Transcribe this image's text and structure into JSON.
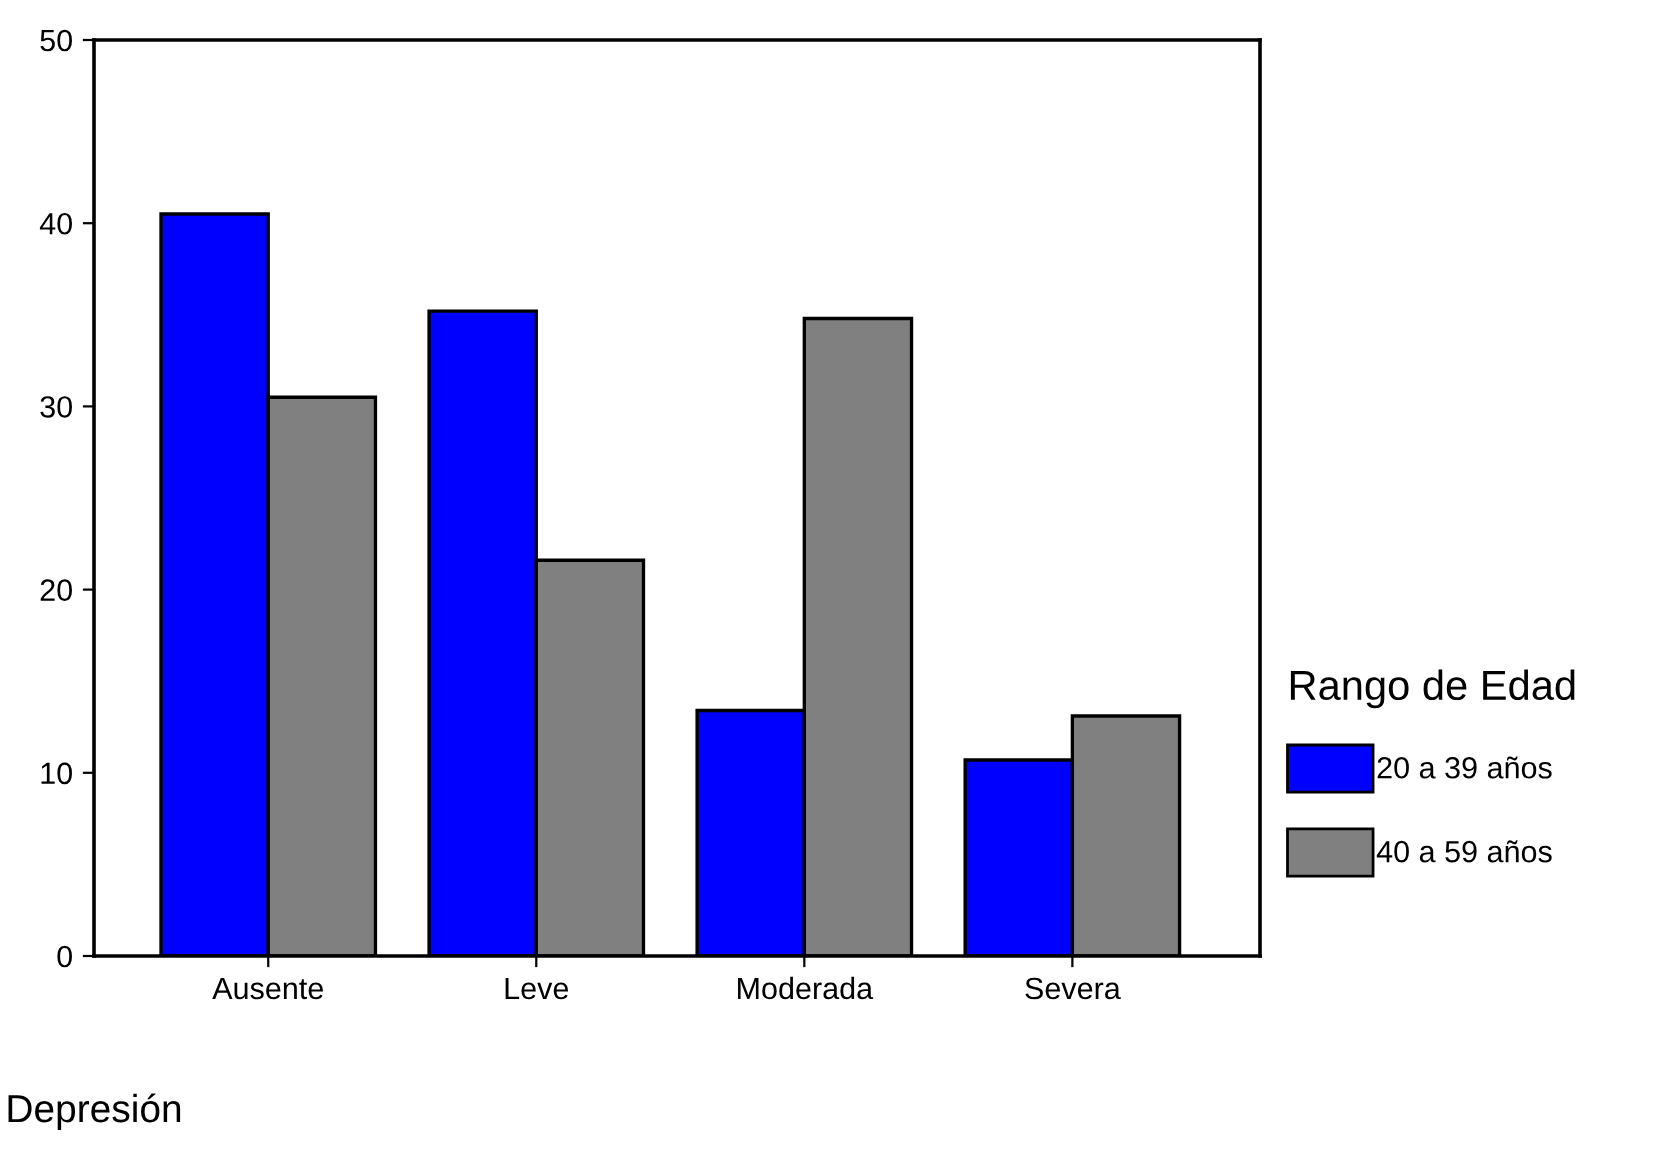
{
  "chart_data": {
    "type": "bar",
    "xlabel": "Depresión",
    "legend_title": "Rango de Edad",
    "categories": [
      "Ausente",
      "Leve",
      "Moderada",
      "Severa"
    ],
    "series": [
      {
        "name": "20 a 39 años",
        "color": "#0000ff",
        "values": [
          40.5,
          35.2,
          13.4,
          10.7
        ]
      },
      {
        "name": "40 a 59 años",
        "color": "#808080",
        "values": [
          30.5,
          21.6,
          34.8,
          13.1
        ]
      }
    ],
    "ylim": [
      0,
      50
    ],
    "yticks": [
      0,
      10,
      20,
      30,
      40,
      50
    ],
    "grid": false,
    "legend": "right"
  }
}
